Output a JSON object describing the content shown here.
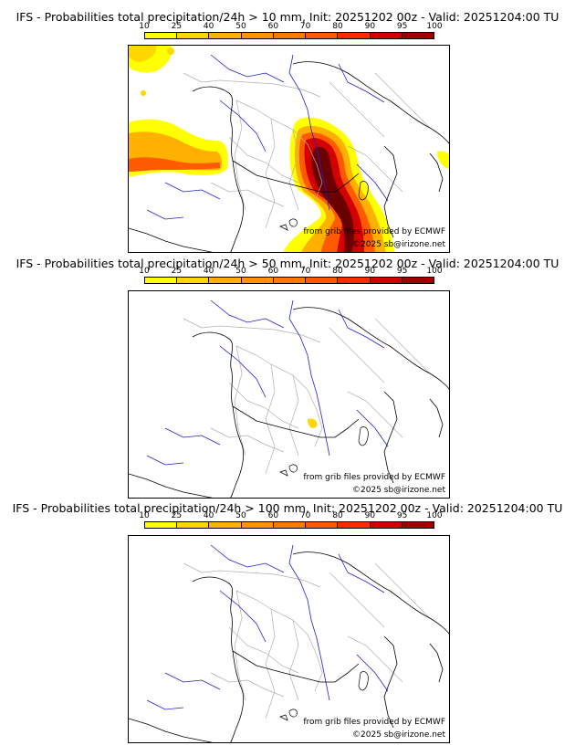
{
  "panels": [
    {
      "title": "IFS - Probabilities total precipitation/24h > 10 mm, Init: 20251202 00z - Valid: 20251204:00 TU",
      "credit_source": "from grib files provided by ECMWF",
      "credit_copyright": "©2025 sb@irizone.net"
    },
    {
      "title": "IFS - Probabilities total precipitation/24h > 50 mm, Init: 20251202 00z - Valid: 20251204:00 TU",
      "credit_source": "from grib files provided by ECMWF",
      "credit_copyright": "©2025 sb@irizone.net"
    },
    {
      "title": "IFS - Probabilities total precipitation/24h > 100 mm, Init: 20251202 00z - Valid: 20251204:00 TU",
      "credit_source": "from grib files provided by ECMWF",
      "credit_copyright": "©2025 sb@irizone.net"
    }
  ],
  "colorbar": {
    "ticks": [
      "10",
      "25",
      "40",
      "50",
      "60",
      "70",
      "80",
      "90",
      "95",
      "100"
    ],
    "colors": [
      "#ffff00",
      "#ffd700",
      "#ffb000",
      "#ff9400",
      "#ff7800",
      "#ff5a00",
      "#ff2a00",
      "#d40000",
      "#a00000",
      "#6a0000"
    ]
  },
  "colors": {
    "coast": "#000000",
    "rivers": "#2020d0",
    "borders": "#b0b0b0"
  }
}
